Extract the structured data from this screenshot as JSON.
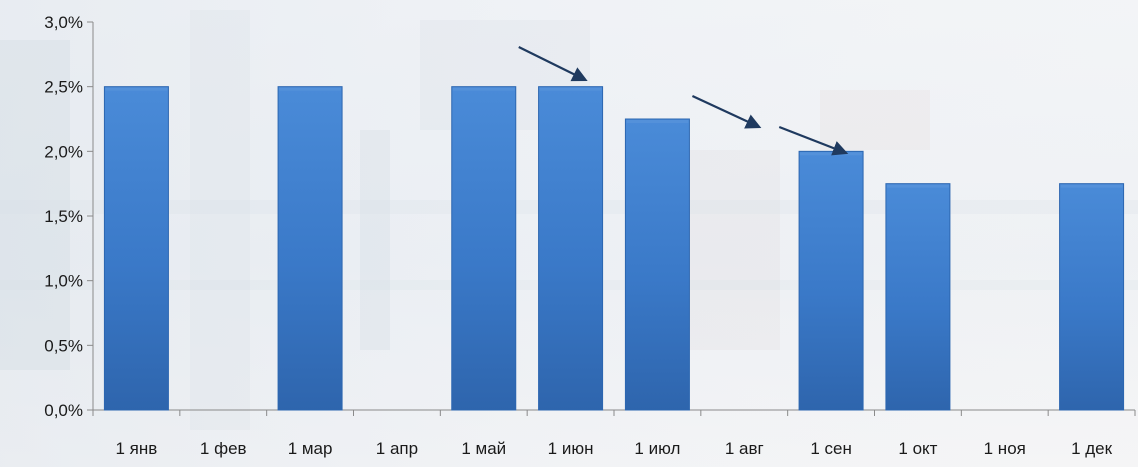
{
  "chart_data": {
    "type": "bar",
    "categories": [
      "1 янв",
      "1 фев",
      "1 мар",
      "1 апр",
      "1 май",
      "1 июн",
      "1 июл",
      "1 авг",
      "1 сен",
      "1 окт",
      "1 ноя",
      "1 дек"
    ],
    "values": [
      2.5,
      null,
      2.5,
      null,
      2.5,
      2.5,
      2.25,
      null,
      2.0,
      1.75,
      null,
      1.75
    ],
    "ylim": [
      0,
      3.0
    ],
    "yticks": [
      "0,0%",
      "0,5%",
      "1,0%",
      "1,5%",
      "2,0%",
      "2,5%",
      "3,0%"
    ],
    "ytick_values": [
      0,
      0.5,
      1.0,
      1.5,
      2.0,
      2.5,
      3.0
    ],
    "grid": false,
    "legend": "none",
    "annotations": [
      {
        "type": "arrow",
        "from_category": "1 май",
        "to_category": "1 июн"
      },
      {
        "type": "arrow",
        "from_category": "1 июл",
        "to_category": "1 авг"
      },
      {
        "type": "arrow",
        "from_category": "1 авг",
        "to_category": "1 сен"
      }
    ],
    "colors": {
      "bar": "#3d7fcf",
      "bar_light": "#5b96dc",
      "bar_dark": "#2c66b0",
      "axis": "#8a8a8a",
      "arrow": "#1f3a5f"
    }
  }
}
